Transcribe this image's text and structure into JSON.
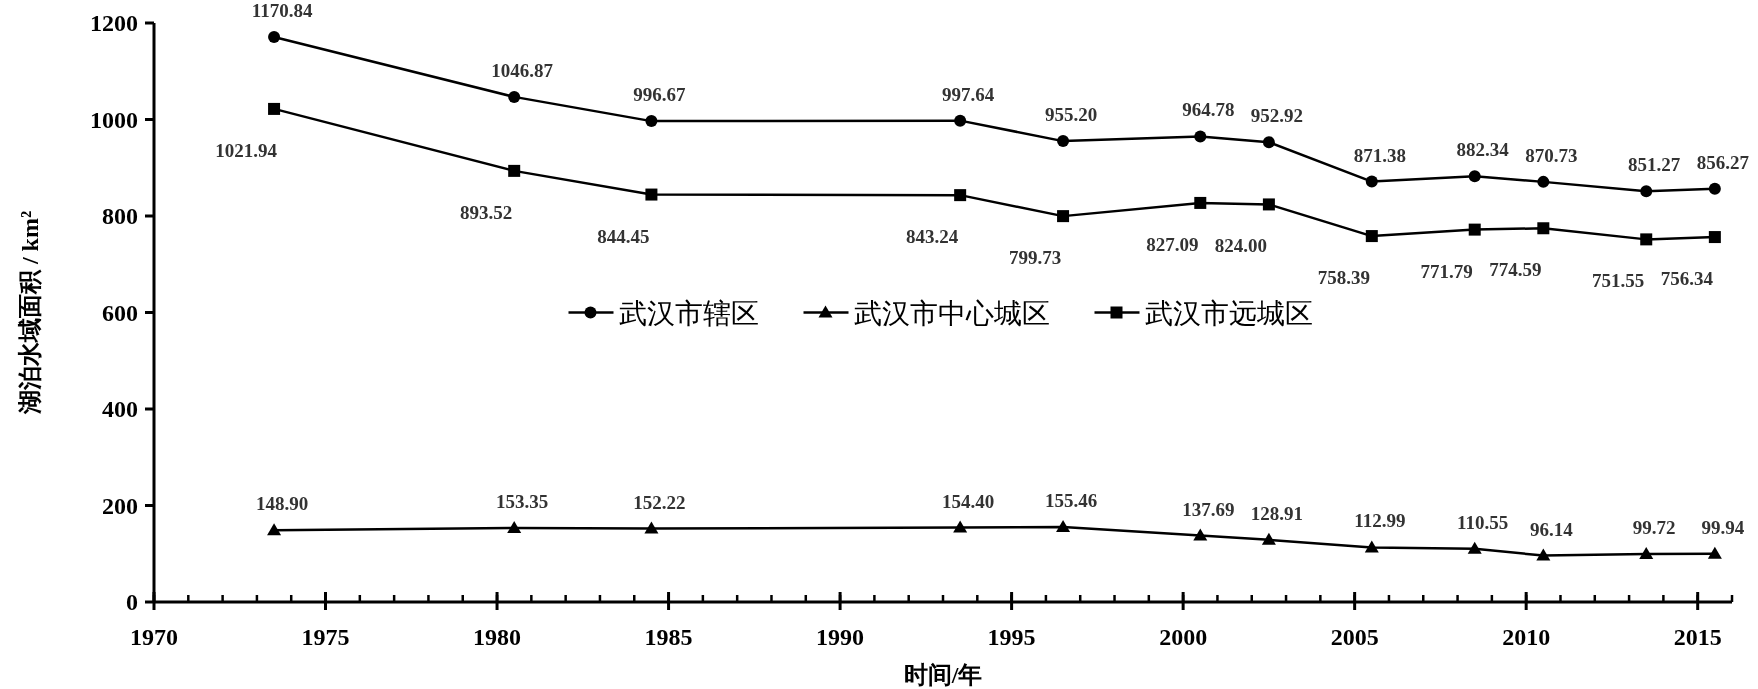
{
  "chart_data": {
    "type": "line",
    "xlabel": "时间/年",
    "ylabel": "湖泊水域面积 / km²",
    "xlim": [
      1970,
      2016
    ],
    "xticks": [
      1970,
      1975,
      1980,
      1985,
      1990,
      1995,
      2000,
      2005,
      2010,
      2015
    ],
    "ylim": [
      0,
      1200
    ],
    "yticks": [
      0,
      200,
      400,
      600,
      800,
      1000,
      1200
    ],
    "x": [
      1973.5,
      1980.5,
      1984.5,
      1993.5,
      1996.5,
      2000.5,
      2002.5,
      2005.5,
      2008.5,
      2010.5,
      2013.5,
      2015.5
    ],
    "grid": false,
    "legend": "center",
    "line_style": "solid",
    "series": [
      {
        "name": "武汉市辖区",
        "color": "#000000",
        "marker": "circle",
        "values": [
          1170.84,
          1046.87,
          996.67,
          997.64,
          955.2,
          964.78,
          952.92,
          871.38,
          882.34,
          870.73,
          851.27,
          856.27
        ],
        "value_labels": [
          "1170.84",
          "1046.87",
          "996.67",
          "997.64",
          "955.20",
          "964.78",
          "952.92",
          "871.38",
          "882.34",
          "870.73",
          "851.27",
          "856.27"
        ]
      },
      {
        "name": "武汉市中心城区",
        "color": "#000000",
        "marker": "triangle",
        "values": [
          148.9,
          153.35,
          152.22,
          154.4,
          155.46,
          137.69,
          128.91,
          112.99,
          110.55,
          96.14,
          99.72,
          99.94
        ],
        "value_labels": [
          "148.90",
          "153.35",
          "152.22",
          "154.40",
          "155.46",
          "137.69",
          "128.91",
          "112.99",
          "110.55",
          "96.14",
          "99.72",
          "99.94"
        ]
      },
      {
        "name": "武汉市远城区",
        "color": "#000000",
        "marker": "square",
        "values": [
          1021.94,
          893.52,
          844.45,
          843.24,
          799.73,
          827.09,
          824.0,
          758.39,
          771.79,
          774.59,
          751.55,
          756.34
        ],
        "value_labels": [
          "1021.94",
          "893.52",
          "844.45",
          "843.24",
          "799.73",
          "827.09",
          "824.00",
          "758.39",
          "771.79",
          "774.59",
          "751.55",
          "756.34"
        ]
      }
    ]
  }
}
